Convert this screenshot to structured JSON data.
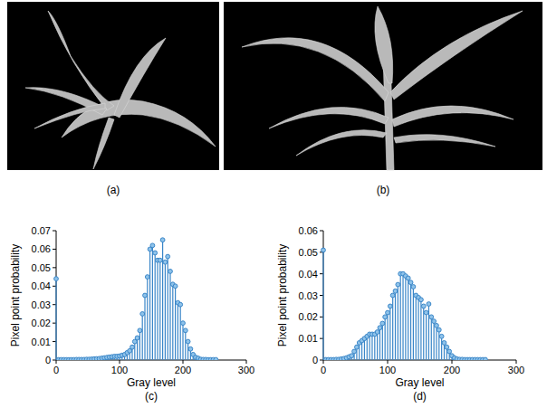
{
  "figure": {
    "images": [
      {
        "label": "(a)"
      },
      {
        "label": "(b)"
      }
    ]
  },
  "chart_data": [
    {
      "type": "stem",
      "caption": "(c)",
      "x_label": "Gray level",
      "y_label": "Pixel point probability",
      "color": "#3a86c8",
      "marker": "circle",
      "x": [
        0,
        4,
        8,
        12,
        16,
        20,
        24,
        28,
        32,
        36,
        40,
        44,
        48,
        52,
        56,
        60,
        64,
        68,
        72,
        76,
        80,
        84,
        88,
        92,
        96,
        100,
        104,
        108,
        112,
        116,
        120,
        124,
        128,
        132,
        136,
        140,
        144,
        148,
        152,
        156,
        160,
        164,
        168,
        172,
        176,
        180,
        184,
        188,
        192,
        196,
        200,
        204,
        208,
        212,
        216,
        220,
        224,
        228,
        232,
        236,
        240,
        244,
        248,
        252
      ],
      "values": [
        0.044,
        0.0002,
        0.0002,
        0.0002,
        0.0002,
        0.0002,
        0.0002,
        0.0002,
        0.0003,
        0.0003,
        0.0003,
        0.0003,
        0.0004,
        0.0004,
        0.0005,
        0.0006,
        0.0007,
        0.0008,
        0.001,
        0.0012,
        0.0014,
        0.0016,
        0.0018,
        0.002,
        0.002,
        0.0022,
        0.0026,
        0.003,
        0.004,
        0.005,
        0.007,
        0.01,
        0.012,
        0.016,
        0.025,
        0.035,
        0.045,
        0.06,
        0.062,
        0.058,
        0.054,
        0.054,
        0.065,
        0.053,
        0.056,
        0.048,
        0.041,
        0.04,
        0.031,
        0.03,
        0.02,
        0.016,
        0.01,
        0.006,
        0.003,
        0.0015,
        0.001,
        0.0004,
        0.0003,
        0.0003,
        0.0002,
        0.0002,
        0.0002,
        0.0002
      ],
      "xlim": [
        0,
        300
      ],
      "xticks": [
        0,
        100,
        200,
        300
      ],
      "ylim": [
        0,
        0.07
      ],
      "yticks": [
        0,
        0.01,
        0.02,
        0.03,
        0.04,
        0.05,
        0.06,
        0.07
      ]
    },
    {
      "type": "stem",
      "caption": "(d)",
      "x_label": "Gray level",
      "y_label": "Pixel point probability",
      "color": "#3a86c8",
      "marker": "circle",
      "x": [
        0,
        4,
        8,
        12,
        16,
        20,
        24,
        28,
        32,
        36,
        40,
        44,
        48,
        52,
        56,
        60,
        64,
        68,
        72,
        76,
        80,
        84,
        88,
        92,
        96,
        100,
        104,
        108,
        112,
        116,
        120,
        124,
        128,
        132,
        136,
        140,
        144,
        148,
        152,
        156,
        160,
        164,
        168,
        172,
        176,
        180,
        184,
        188,
        192,
        196,
        200,
        204,
        208,
        212,
        216,
        220,
        224,
        228,
        232,
        236,
        240,
        244,
        248,
        252
      ],
      "values": [
        0.051,
        0.0002,
        0.0002,
        0.0002,
        0.0002,
        0.0003,
        0.0003,
        0.0005,
        0.0007,
        0.001,
        0.0015,
        0.002,
        0.004,
        0.006,
        0.008,
        0.009,
        0.01,
        0.011,
        0.012,
        0.012,
        0.012,
        0.013,
        0.015,
        0.017,
        0.02,
        0.022,
        0.025,
        0.03,
        0.032,
        0.035,
        0.04,
        0.04,
        0.039,
        0.038,
        0.036,
        0.034,
        0.03,
        0.029,
        0.028,
        0.025,
        0.022,
        0.026,
        0.02,
        0.018,
        0.016,
        0.014,
        0.011,
        0.008,
        0.006,
        0.004,
        0.002,
        0.001,
        0.0005,
        0.0003,
        0.0003,
        0.0002,
        0.0002,
        0.0002,
        0.0002,
        0.0002,
        0.0002,
        0.0002,
        0.0002,
        0.0002
      ],
      "xlim": [
        0,
        300
      ],
      "xticks": [
        0,
        100,
        200,
        300
      ],
      "ylim": [
        0,
        0.06
      ],
      "yticks": [
        0,
        0.01,
        0.02,
        0.03,
        0.04,
        0.05,
        0.06
      ]
    }
  ]
}
